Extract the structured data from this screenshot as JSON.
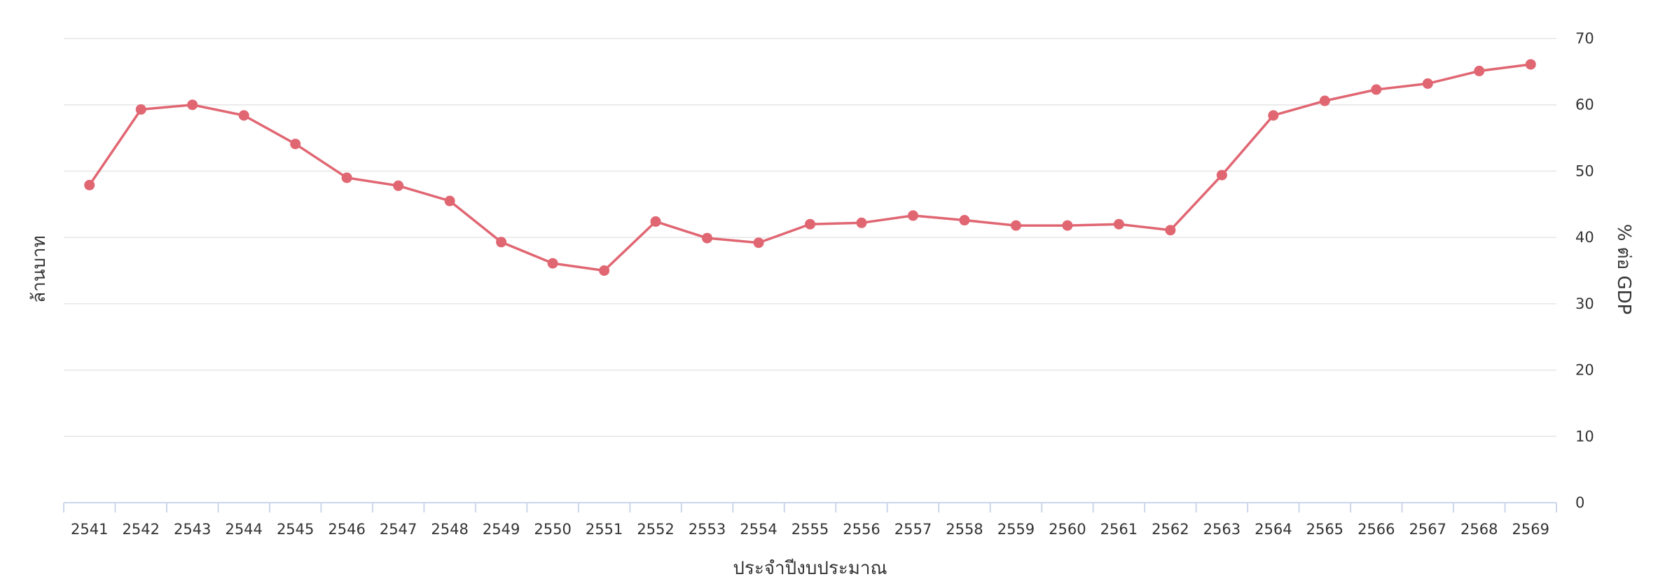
{
  "chart_data": {
    "type": "line",
    "xlabel": "ประจำปีงบประมาณ",
    "ylabel_left": "ล้านบาท",
    "ylabel_right": "% ต่อ GDP",
    "ylim": [
      0,
      70
    ],
    "yticks": [
      0,
      10,
      20,
      30,
      40,
      50,
      60,
      70
    ],
    "grid": true,
    "legend": "none",
    "colors": {
      "line": "#e06672",
      "grid": "#e6e6e6",
      "axis": "#ccd6eb",
      "text": "#333333"
    },
    "categories": [
      "2541",
      "2542",
      "2543",
      "2544",
      "2545",
      "2546",
      "2547",
      "2548",
      "2549",
      "2550",
      "2551",
      "2552",
      "2553",
      "2554",
      "2555",
      "2556",
      "2557",
      "2558",
      "2559",
      "2560",
      "2561",
      "2562",
      "2563",
      "2564",
      "2565",
      "2566",
      "2567",
      "2568",
      "2569"
    ],
    "series": [
      {
        "values": [
          47.9,
          59.3,
          60.0,
          58.4,
          54.1,
          49.0,
          47.8,
          45.5,
          39.3,
          36.1,
          35.0,
          42.4,
          39.9,
          39.2,
          42.0,
          42.2,
          43.3,
          42.6,
          41.8,
          41.8,
          42.0,
          41.1,
          49.4,
          58.4,
          60.6,
          62.3,
          63.2,
          65.1,
          66.1
        ]
      }
    ]
  }
}
